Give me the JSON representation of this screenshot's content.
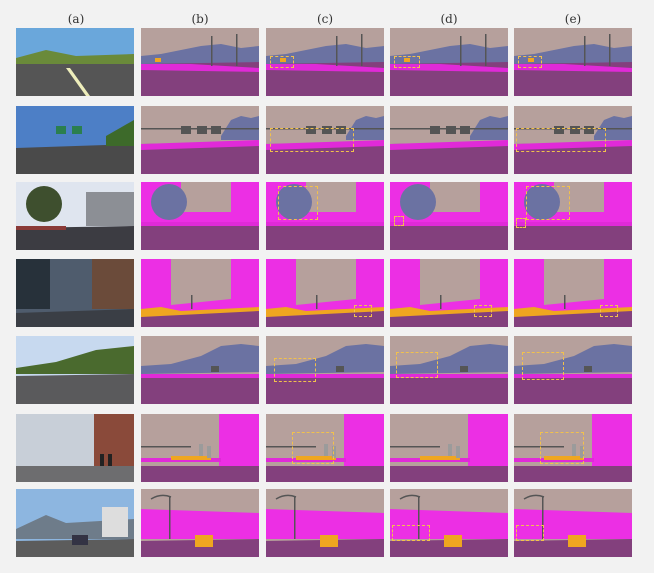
{
  "columns": [
    "(a)",
    "(b)",
    "(c)",
    "(d)",
    "(e)"
  ],
  "colors": {
    "sky": "#b6a09c",
    "building": "#ec2fe4",
    "vegetation": "#6b72a2",
    "road": "#83407d",
    "sidewalk": "#e02ad8",
    "car": "#efa620",
    "pole": "#555555",
    "person": "#9b9b9b",
    "box": "#f2c14b"
  },
  "rows": [
    {
      "id": "row1",
      "photo": "suburban-road-blue-sky"
    },
    {
      "id": "row2",
      "photo": "highway-green-signs"
    },
    {
      "id": "row3",
      "photo": "city-street-tree"
    },
    {
      "id": "row4",
      "photo": "city-street-tall-buildings"
    },
    {
      "id": "row5",
      "photo": "wide-road-trees"
    },
    {
      "id": "row6",
      "photo": "street-with-pedestrians"
    },
    {
      "id": "row7",
      "photo": "road-with-car-mountains"
    }
  ]
}
